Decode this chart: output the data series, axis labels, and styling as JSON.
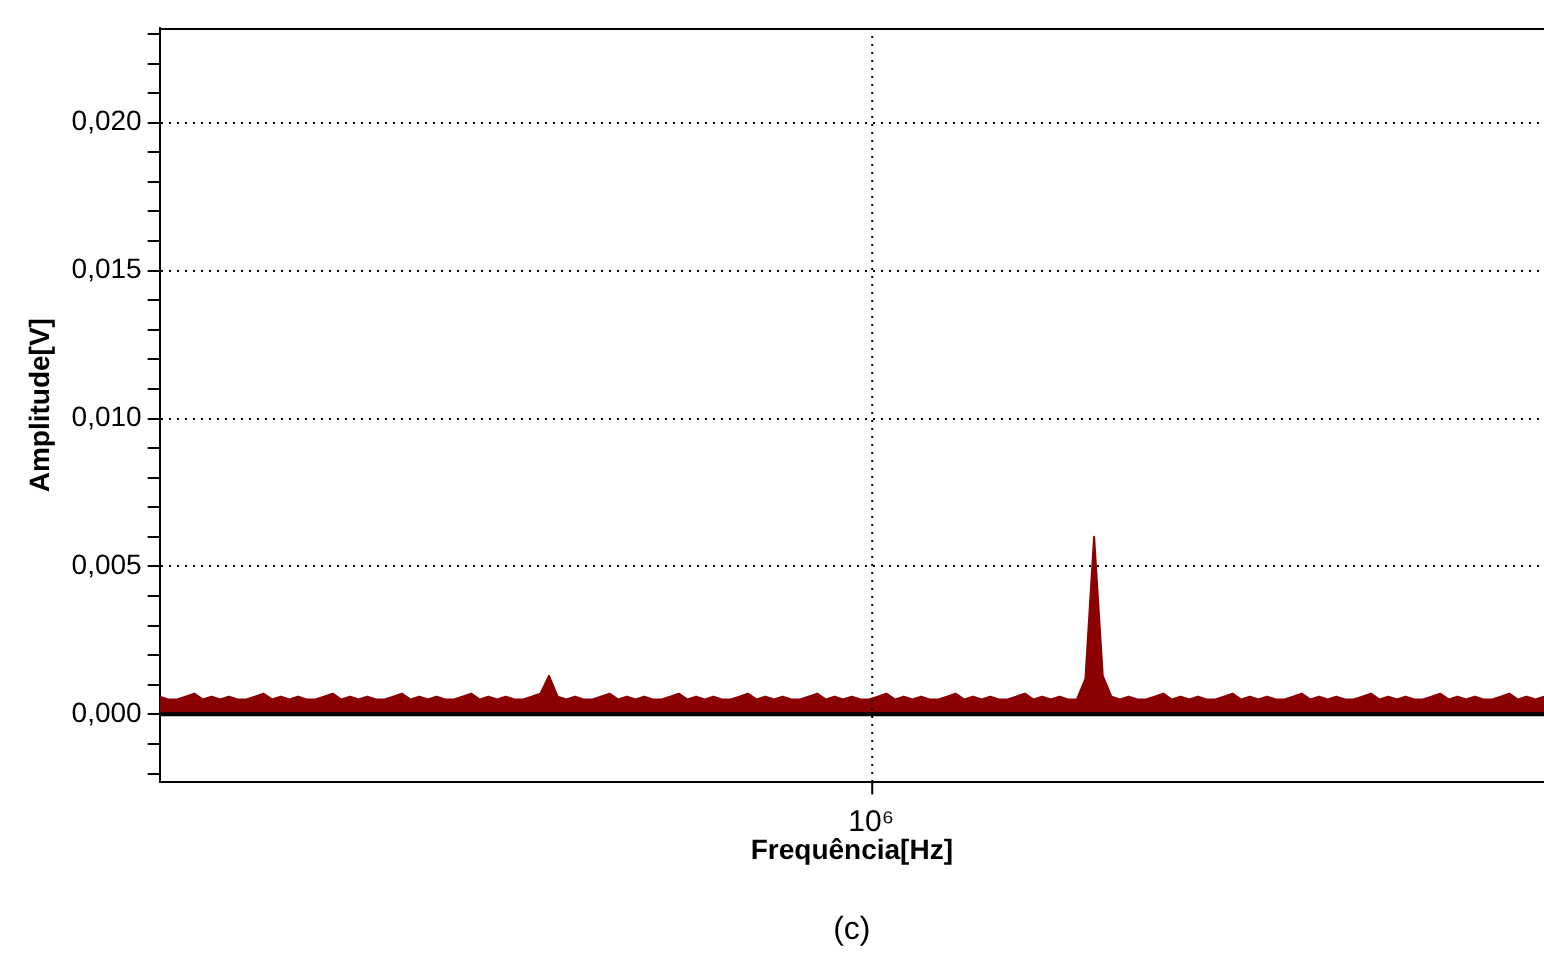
{
  "chart_data": {
    "type": "area",
    "xlabel": "Frequência[Hz]",
    "ylabel": "Amplitude[V]",
    "annotations": [
      "10⁶",
      "(c)"
    ],
    "grid": "y",
    "legend": false,
    "tick_labels": "y",
    "categories": [
      null,
      null,
      null,
      null,
      null,
      null,
      null,
      null,
      null,
      null,
      null,
      null,
      null,
      null,
      null,
      null,
      null,
      null,
      null,
      null,
      null,
      null,
      null,
      null,
      null,
      null,
      null,
      null,
      null,
      null,
      null,
      null,
      null,
      null,
      null,
      null,
      null,
      null,
      null,
      null,
      null,
      null,
      null,
      null,
      null,
      null,
      null,
      null,
      null,
      null,
      null,
      null,
      null,
      null,
      null,
      null,
      null,
      null,
      null,
      null,
      null,
      null,
      null,
      null,
      null,
      null,
      null,
      null,
      null,
      null,
      null,
      null,
      null,
      null,
      null,
      null,
      null,
      null,
      null,
      null,
      null,
      null,
      null,
      null,
      null,
      null,
      null,
      null,
      null,
      null,
      null,
      null,
      null,
      null,
      null,
      null,
      null,
      null,
      null,
      null,
      null,
      null,
      null,
      null,
      null,
      null,
      null,
      null,
      null,
      null,
      null,
      null,
      null,
      null,
      null,
      null,
      null,
      null,
      null,
      null,
      null,
      null,
      null,
      null,
      null,
      null,
      null,
      null,
      null,
      null,
      null,
      null,
      null,
      null,
      null,
      null,
      null,
      null,
      null,
      null,
      null,
      null,
      null,
      null,
      null,
      null,
      null,
      null,
      null,
      null,
      null,
      null,
      null,
      null,
      null,
      null,
      null,
      null,
      null,
      null,
      null
    ],
    "ylim": [
      -0.0023,
      0.0232
    ],
    "yticks": [
      {
        "value": -0.002,
        "label": null
      },
      {
        "value": -0.001,
        "label": null
      },
      {
        "value": 0,
        "label": "0,000"
      },
      {
        "value": 0.001,
        "label": null
      },
      {
        "value": 0.002,
        "label": null
      },
      {
        "value": 0.003,
        "label": null
      },
      {
        "value": 0.004,
        "label": null
      },
      {
        "value": 0.005,
        "label": "0,005"
      },
      {
        "value": 0.006,
        "label": null
      },
      {
        "value": 0.007,
        "label": null
      },
      {
        "value": 0.008,
        "label": null
      },
      {
        "value": 0.009,
        "label": null
      },
      {
        "value": 0.01,
        "label": "0,010"
      },
      {
        "value": 0.011,
        "label": null
      },
      {
        "value": 0.012,
        "label": null
      },
      {
        "value": 0.013,
        "label": null
      },
      {
        "value": 0.014,
        "label": null
      },
      {
        "value": 0.015,
        "label": "0,015"
      },
      {
        "value": 0.016,
        "label": null
      },
      {
        "value": 0.017,
        "label": null
      },
      {
        "value": 0.018,
        "label": null
      },
      {
        "value": 0.019,
        "label": null
      },
      {
        "value": 0.02,
        "label": "0,020"
      },
      {
        "value": 0.021,
        "label": null
      },
      {
        "value": 0.022,
        "label": null
      },
      {
        "value": 0.023,
        "label": null
      }
    ],
    "ref_lines": [
      {
        "axis": "y",
        "value": 0,
        "color": "#000000"
      }
    ],
    "series": [
      {
        "color": "#8b0000",
        "values": [
          0.0006,
          0.0005,
          0.0005,
          0.0006,
          0.0007,
          0.0005,
          0.0006,
          0.0005,
          0.0006,
          0.0005,
          0.0005,
          0.0006,
          0.0007,
          0.0005,
          0.0006,
          0.0005,
          0.0006,
          0.0005,
          0.0005,
          0.0006,
          0.0007,
          0.0005,
          0.0006,
          0.0005,
          0.0006,
          0.0005,
          0.0005,
          0.0006,
          0.0007,
          0.0005,
          0.0006,
          0.0005,
          0.0006,
          0.0005,
          0.0005,
          0.0006,
          0.0007,
          0.0005,
          0.0006,
          0.0005,
          0.0006,
          0.0005,
          0.0005,
          0.0006,
          0.0007,
          0.0013,
          0.0006,
          0.0005,
          0.0006,
          0.0005,
          0.0005,
          0.0006,
          0.0007,
          0.0005,
          0.0006,
          0.0005,
          0.0006,
          0.0005,
          0.0005,
          0.0006,
          0.0007,
          0.0005,
          0.0006,
          0.0005,
          0.0006,
          0.0005,
          0.0005,
          0.0006,
          0.0007,
          0.0005,
          0.0006,
          0.0005,
          0.0006,
          0.0005,
          0.0005,
          0.0006,
          0.0007,
          0.0005,
          0.0006,
          0.0005,
          0.0006,
          0.0005,
          0.0005,
          0.0006,
          0.0007,
          0.0005,
          0.0006,
          0.0005,
          0.0006,
          0.0005,
          0.0005,
          0.0006,
          0.0007,
          0.0005,
          0.0006,
          0.0005,
          0.0006,
          0.0005,
          0.0005,
          0.0006,
          0.0007,
          0.0005,
          0.0006,
          0.0005,
          0.0006,
          0.0005,
          0.0005,
          0.0012,
          0.006,
          0.0013,
          0.0006,
          0.0005,
          0.0006,
          0.0005,
          0.0005,
          0.0006,
          0.0007,
          0.0005,
          0.0006,
          0.0005,
          0.0006,
          0.0005,
          0.0005,
          0.0006,
          0.0007,
          0.0005,
          0.0006,
          0.0005,
          0.0006,
          0.0005,
          0.0005,
          0.0006,
          0.0007,
          0.0005,
          0.0006,
          0.0005,
          0.0006,
          0.0005,
          0.0005,
          0.0006,
          0.0007,
          0.0005,
          0.0006,
          0.0005,
          0.0006,
          0.0005,
          0.0005,
          0.0006,
          0.0007,
          0.0005,
          0.0006,
          0.0005,
          0.0006,
          0.0005,
          0.0005,
          0.0006,
          0.0007,
          0.0005,
          0.0006,
          0.0005,
          0.0006
        ]
      }
    ]
  }
}
